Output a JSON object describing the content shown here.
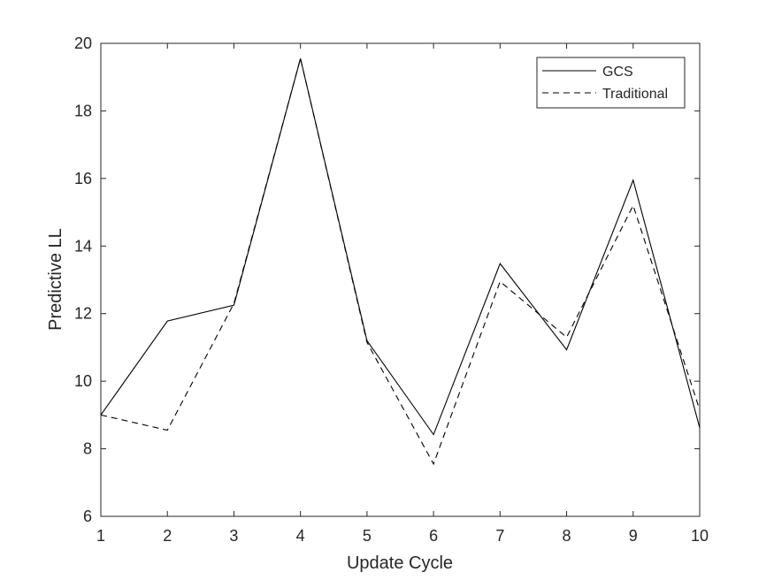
{
  "chart_data": {
    "type": "line",
    "title": "",
    "xlabel": "Update Cycle",
    "ylabel": "Predictive LL",
    "xlim": [
      1,
      10
    ],
    "ylim": [
      6,
      20
    ],
    "x": [
      1,
      2,
      3,
      4,
      5,
      6,
      7,
      8,
      9,
      10
    ],
    "xticks": [
      "1",
      "2",
      "3",
      "4",
      "5",
      "6",
      "7",
      "8",
      "9",
      "10"
    ],
    "yticks": [
      "6",
      "8",
      "10",
      "12",
      "14",
      "16",
      "18",
      "20"
    ],
    "grid": false,
    "legend_position": "top-right",
    "series": [
      {
        "name": "GCS",
        "style": "solid",
        "color": "#000000",
        "values": [
          9.0,
          11.78,
          12.25,
          19.55,
          11.2,
          8.42,
          13.48,
          10.93,
          15.95,
          8.62
        ]
      },
      {
        "name": "Traditional",
        "style": "dashed",
        "color": "#000000",
        "values": [
          9.0,
          8.55,
          12.3,
          19.55,
          11.15,
          7.55,
          12.95,
          11.3,
          15.2,
          9.15
        ]
      }
    ]
  }
}
